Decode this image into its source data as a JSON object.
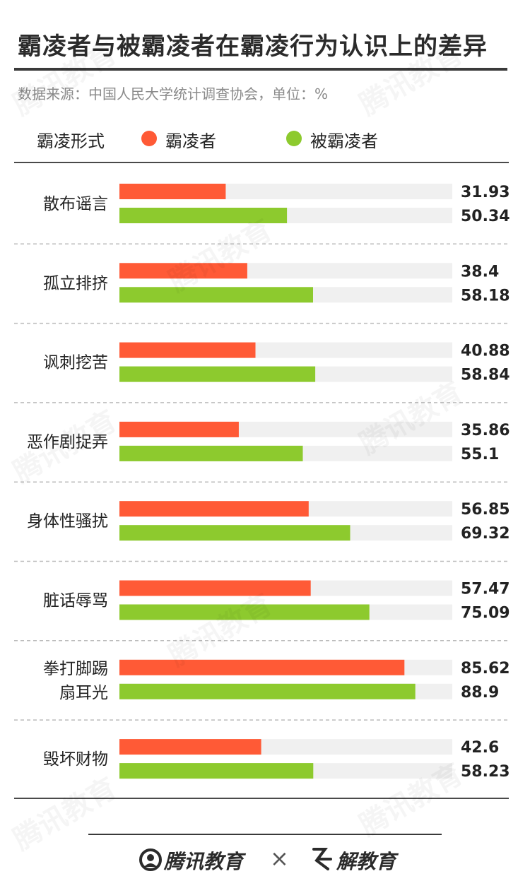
{
  "title": "霸凌者与被霸凌者在霸凌行为认识上的差异",
  "subtitle": "数据来源：中国人民大学统计调查协会，单位：%",
  "legend": {
    "category_label": "霸凌形式",
    "series1": "霸凌者",
    "series2": "被霸凌者"
  },
  "colors": {
    "bully": "#ff5a36",
    "victim": "#8dca2e",
    "track": "#f0f0f0",
    "divider": "#bbbbbb"
  },
  "chart_data": {
    "type": "bar",
    "orientation": "horizontal",
    "categories": [
      [
        "散布谣言"
      ],
      [
        "孤立排挤"
      ],
      [
        "讽刺挖苦"
      ],
      [
        "恶作剧捉弄"
      ],
      [
        "身体性骚扰"
      ],
      [
        "脏话辱骂"
      ],
      [
        "拳打脚踢",
        "扇耳光"
      ],
      [
        "毁坏财物"
      ]
    ],
    "series": [
      {
        "name": "霸凌者",
        "color": "#ff5a36",
        "values": [
          31.93,
          38.4,
          40.88,
          35.86,
          56.85,
          57.47,
          85.62,
          42.6
        ]
      },
      {
        "name": "被霸凌者",
        "color": "#8dca2e",
        "values": [
          50.34,
          58.18,
          58.84,
          55.1,
          69.32,
          75.09,
          88.9,
          58.23
        ]
      }
    ],
    "xlim": [
      0,
      100
    ]
  },
  "footer": {
    "brand1": "腾讯教育",
    "separator": "×",
    "brand2": "解教育"
  },
  "watermark": "腾讯教育"
}
